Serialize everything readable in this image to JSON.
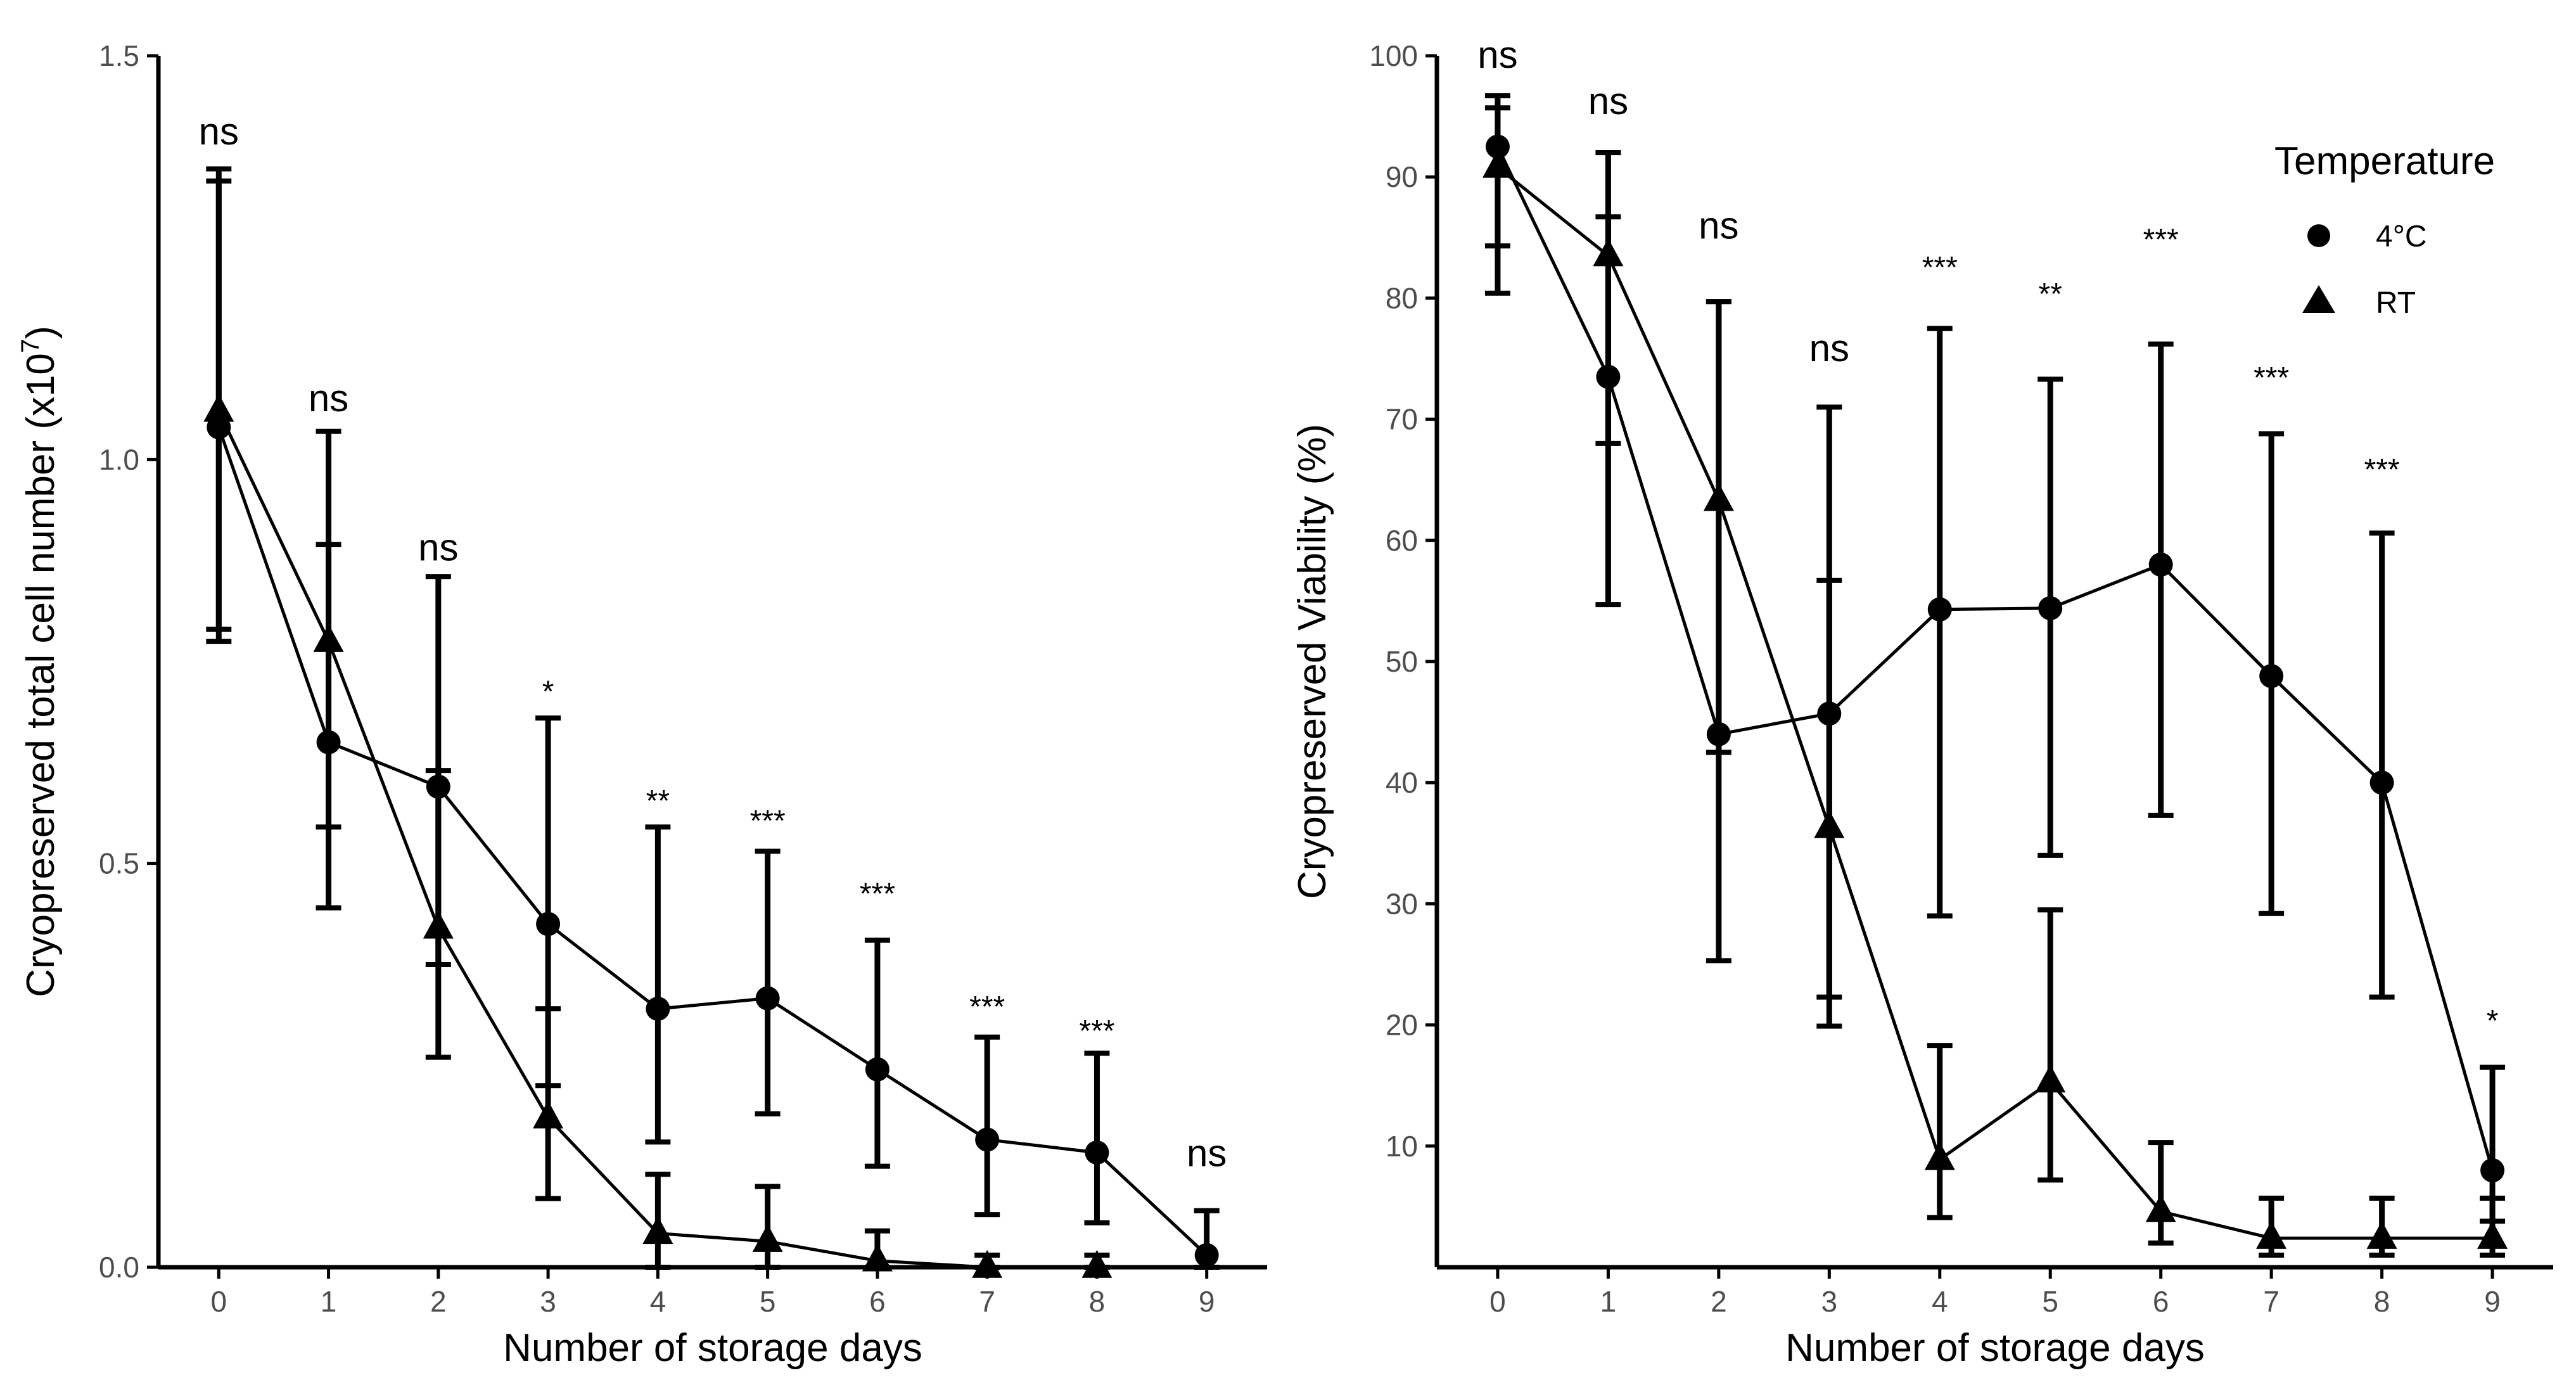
{
  "chart_data": [
    {
      "type": "line",
      "xlabel": "Number of storage days",
      "ylabel": "Cryopreserved total cell number (x10",
      "ylabel_sup": "7",
      "ylabel_end": ")",
      "x": [
        0,
        1,
        2,
        3,
        4,
        5,
        6,
        7,
        8,
        9
      ],
      "xlim": [
        -0.55,
        9.55
      ],
      "ylim": [
        0,
        1.5
      ],
      "yticks": [
        0.0,
        0.5,
        1.0,
        1.5
      ],
      "ytick_labels": [
        "0.0",
        "0.5",
        "1.0",
        "1.5"
      ],
      "series": [
        {
          "name": "4°C",
          "marker": "circle",
          "values": [
            1.04,
            0.65,
            0.595,
            0.425,
            0.32,
            0.333,
            0.245,
            0.158,
            0.142,
            0.015
          ],
          "err_low": [
            0.775,
            0.445,
            0.375,
            0.225,
            0.155,
            0.19,
            0.125,
            0.065,
            0.055,
            0.0
          ],
          "err_high": [
            1.36,
            0.895,
            0.855,
            0.68,
            0.545,
            0.515,
            0.405,
            0.285,
            0.265,
            0.07
          ]
        },
        {
          "name": "RT",
          "marker": "triangle",
          "values": [
            1.06,
            0.775,
            0.42,
            0.185,
            0.042,
            0.032,
            0.008,
            0.0,
            0.0,
            null
          ],
          "err_low": [
            0.79,
            0.545,
            0.26,
            0.085,
            0.0,
            0.0,
            0.0,
            0.0,
            0.0,
            null
          ],
          "err_high": [
            1.345,
            1.035,
            0.615,
            0.32,
            0.115,
            0.1,
            0.045,
            0.015,
            0.015,
            null
          ]
        }
      ],
      "annotations": [
        {
          "x": 0,
          "y": 1.39,
          "text": "ns"
        },
        {
          "x": 1,
          "y": 1.06,
          "text": "ns"
        },
        {
          "x": 2,
          "y": 0.875,
          "text": "ns"
        },
        {
          "x": 3,
          "y": 0.7,
          "text": "*"
        },
        {
          "x": 4,
          "y": 0.565,
          "text": "**"
        },
        {
          "x": 5,
          "y": 0.54,
          "text": "***"
        },
        {
          "x": 6,
          "y": 0.45,
          "text": "***"
        },
        {
          "x": 7,
          "y": 0.31,
          "text": "***"
        },
        {
          "x": 8,
          "y": 0.28,
          "text": "***"
        },
        {
          "x": 9,
          "y": 0.125,
          "text": "ns"
        }
      ]
    },
    {
      "type": "line",
      "xlabel": "Number of storage days",
      "ylabel": "Cryopreserved Viability (%)",
      "x": [
        0,
        1,
        2,
        3,
        4,
        5,
        6,
        7,
        8,
        9
      ],
      "xlim": [
        -0.55,
        9.55
      ],
      "ylim": [
        0,
        100
      ],
      "yticks": [
        10,
        20,
        30,
        40,
        50,
        60,
        70,
        80,
        90,
        100
      ],
      "ytick_labels": [
        "10",
        "20",
        "30",
        "40",
        "50",
        "60",
        "70",
        "80",
        "90",
        "100"
      ],
      "series": [
        {
          "name": "4°C",
          "marker": "circle",
          "values": [
            92.5,
            73.5,
            44.0,
            45.7,
            54.3,
            54.4,
            58.0,
            48.8,
            40.0,
            8.0
          ],
          "err_low": [
            84.3,
            54.7,
            25.3,
            22.3,
            29.0,
            34.0,
            37.3,
            29.2,
            22.3,
            3.8
          ],
          "err_high": [
            96.7,
            92.0,
            79.7,
            71.0,
            77.5,
            73.3,
            76.2,
            68.8,
            60.6,
            16.5
          ]
        },
        {
          "name": "RT",
          "marker": "triangle",
          "values": [
            90.8,
            83.5,
            63.3,
            36.3,
            8.9,
            15.3,
            4.6,
            2.4,
            2.4,
            2.4
          ],
          "err_low": [
            80.4,
            68.0,
            42.5,
            19.9,
            4.1,
            7.2,
            2.0,
            1.0,
            1.0,
            1.0
          ],
          "err_high": [
            95.7,
            86.7,
            79.7,
            56.7,
            18.3,
            29.5,
            10.3,
            5.7,
            5.7,
            5.7
          ]
        }
      ],
      "annotations": [
        {
          "x": 0,
          "y": 99.0,
          "text": "ns"
        },
        {
          "x": 1,
          "y": 95.2,
          "text": "ns"
        },
        {
          "x": 2,
          "y": 84.9,
          "text": "ns"
        },
        {
          "x": 3,
          "y": 74.8,
          "text": "ns"
        },
        {
          "x": 4,
          "y": 81.7,
          "text": "***"
        },
        {
          "x": 5,
          "y": 79.5,
          "text": "**"
        },
        {
          "x": 6,
          "y": 84.0,
          "text": "***"
        },
        {
          "x": 7,
          "y": 72.6,
          "text": "***"
        },
        {
          "x": 8,
          "y": 65.0,
          "text": "***"
        },
        {
          "x": 9,
          "y": 19.5,
          "text": "*"
        }
      ],
      "legend": {
        "title": "Temperature",
        "position": "top-right",
        "entries": [
          {
            "label": "4°C",
            "marker": "circle"
          },
          {
            "label": "RT",
            "marker": "triangle"
          }
        ]
      }
    }
  ]
}
